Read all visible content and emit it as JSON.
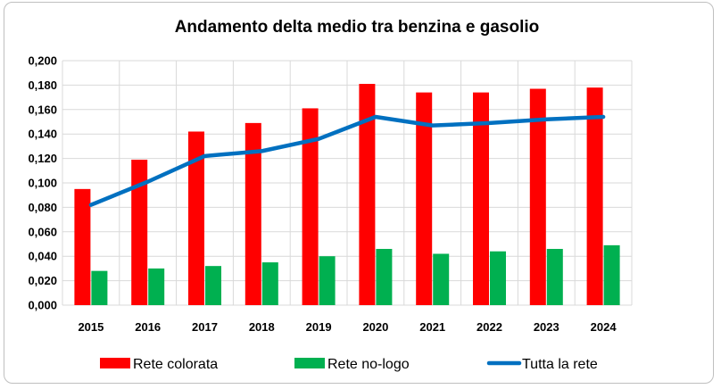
{
  "chart_data": {
    "type": "bar",
    "title": "Andamento delta medio tra benzina e gasolio",
    "categories": [
      "2015",
      "2016",
      "2017",
      "2018",
      "2019",
      "2020",
      "2021",
      "2022",
      "2023",
      "2024"
    ],
    "series": [
      {
        "name": "Rete colorata",
        "kind": "bar",
        "color": "#ff0000",
        "values": [
          0.095,
          0.119,
          0.142,
          0.149,
          0.161,
          0.181,
          0.174,
          0.174,
          0.177,
          0.178
        ]
      },
      {
        "name": "Rete no-logo",
        "kind": "bar",
        "color": "#00b050",
        "values": [
          0.028,
          0.03,
          0.032,
          0.035,
          0.04,
          0.046,
          0.042,
          0.044,
          0.046,
          0.049
        ]
      },
      {
        "name": "Tutta la rete",
        "kind": "line",
        "color": "#0070c0",
        "values": [
          0.082,
          0.101,
          0.122,
          0.126,
          0.136,
          0.154,
          0.147,
          0.149,
          0.152,
          0.154
        ]
      }
    ],
    "ylim": [
      0,
      0.2
    ],
    "yticks": [
      "0,000",
      "0,020",
      "0,040",
      "0,060",
      "0,080",
      "0,100",
      "0,120",
      "0,140",
      "0,160",
      "0,180",
      "0,200"
    ],
    "grid": true,
    "legend": "bottom"
  }
}
